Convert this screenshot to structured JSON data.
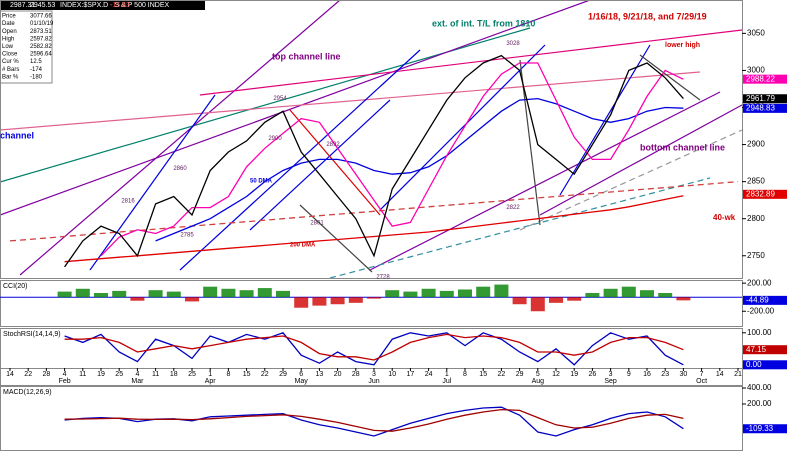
{
  "header": {
    "symbol": "INDEX:$SPX.D - S & P 500 INDEX",
    "quote": [
      ".47",
      "2987.31",
      "2945.53",
      "-15.83"
    ]
  },
  "info": [
    [
      "Price",
      "3077.66"
    ],
    [
      "Date",
      "01/10/19"
    ],
    [
      "Open",
      "2873.51"
    ],
    [
      "High",
      "2597.82"
    ],
    [
      "Low",
      "2582.82"
    ],
    [
      "Close",
      "2596.64"
    ],
    [
      "Cur %",
      "12.5"
    ],
    [
      "# Bars",
      "-174"
    ],
    [
      "Bar %",
      "-180"
    ]
  ],
  "x_axis": {
    "categories": [
      "14",
      "22",
      "28",
      "4",
      "11",
      "19",
      "25",
      "4",
      "11",
      "18",
      "25",
      "1",
      "8",
      "15",
      "22",
      "29",
      "6",
      "13",
      "20",
      "28",
      "3",
      "10",
      "17",
      "24",
      "1",
      "8",
      "15",
      "22",
      "29",
      "5",
      "12",
      "19",
      "26",
      "3",
      "9",
      "16",
      "23",
      "30",
      "7",
      "14",
      "21"
    ],
    "months": [
      null,
      null,
      null,
      "Feb",
      null,
      null,
      null,
      "Mar",
      null,
      null,
      null,
      "Apr",
      null,
      null,
      null,
      null,
      "May",
      null,
      null,
      null,
      "Jun",
      null,
      null,
      null,
      "Jul",
      null,
      null,
      null,
      null,
      "Aug",
      null,
      null,
      null,
      "Sep",
      null,
      null,
      null,
      null,
      "Oct",
      null,
      null
    ]
  },
  "annotations": [
    "top channel line",
    "channel",
    "bottom channel line",
    "ext. of int. T/L from 1810",
    "1/16/18, 9/21/18, and 7/29/19",
    "lower high",
    "40-wk",
    "50 DMA",
    "200 DMA"
  ],
  "pivots": [
    2954,
    2900,
    2892,
    2801,
    2728,
    2860,
    2816,
    2785,
    3028,
    2822
  ],
  "chart_data": [
    {
      "type": "line",
      "ylim": [
        2720,
        3095
      ],
      "yticks": [
        2750,
        2800,
        2850,
        2900,
        2950,
        3000,
        3050
      ],
      "series": [
        {
          "color": "#d04040",
          "dash": true,
          "values": [
            2770,
            2772,
            2774,
            2776,
            2778,
            2780,
            2782,
            2784,
            2786,
            2788,
            2790,
            2792,
            2794,
            2796,
            2798,
            2800,
            2802,
            2804,
            2806,
            2808,
            2810,
            2812,
            2814,
            2816,
            2818,
            2820,
            2822,
            2824,
            2826,
            2828,
            2830,
            2832,
            2834,
            2836,
            2838,
            2840,
            2842,
            2844,
            2846,
            2848,
            2850
          ]
        },
        {
          "color": "#e00000",
          "values": [
            null,
            null,
            null,
            2742,
            2744,
            2746,
            2748,
            2750,
            2752,
            2754,
            2756,
            2758,
            2760,
            2762,
            2764,
            2766,
            2768,
            2770,
            2772,
            2774,
            2776,
            2778,
            2780,
            2782,
            2785,
            2788,
            2791,
            2794,
            2797,
            2800,
            2803,
            2806,
            2809,
            2812,
            2816,
            2821,
            2826,
            2831,
            null,
            null,
            null
          ]
        },
        {
          "color": "#0000e0",
          "values": [
            null,
            null,
            null,
            null,
            null,
            null,
            null,
            null,
            2770,
            2780,
            2790,
            2800,
            2815,
            2830,
            2850,
            2865,
            2875,
            2880,
            2880,
            2875,
            2865,
            2860,
            2862,
            2870,
            2885,
            2905,
            2925,
            2945,
            2960,
            2962,
            2955,
            2945,
            2935,
            2930,
            2935,
            2945,
            2950,
            2949,
            null,
            null,
            null
          ]
        },
        {
          "color": "#ff00b0",
          "values": [
            null,
            null,
            null,
            null,
            null,
            2750,
            2775,
            2785,
            2780,
            2790,
            2815,
            2815,
            2830,
            2870,
            2895,
            2915,
            2935,
            2930,
            2895,
            2860,
            2825,
            2790,
            2795,
            2840,
            2885,
            2925,
            2965,
            2995,
            3010,
            3010,
            2960,
            2910,
            2880,
            2880,
            2920,
            2965,
            3000,
            2988,
            null,
            null,
            null
          ]
        },
        {
          "color": "#000000",
          "values": [
            null,
            null,
            null,
            2735,
            2770,
            2790,
            2780,
            2750,
            2820,
            2830,
            2805,
            2865,
            2890,
            2905,
            2930,
            2945,
            2890,
            2860,
            2830,
            2800,
            2750,
            2840,
            2880,
            2920,
            2960,
            2990,
            3010,
            3020,
            3000,
            2900,
            2880,
            2860,
            2900,
            2940,
            3000,
            3010,
            2990,
            2962,
            null,
            null,
            null
          ]
        }
      ],
      "tags": [
        {
          "value": 2988.22,
          "color": "#ff00b0"
        },
        {
          "value": 2961.79,
          "color": "#000000"
        },
        {
          "value": 2948.83,
          "color": "#0000e0"
        },
        {
          "value": 2832.89,
          "color": "#e00000"
        }
      ]
    },
    {
      "type": "bar",
      "title": "CCI(20)",
      "ylim": [
        -410,
        245
      ],
      "yticks": [
        {
          "value": 200,
          "label": "200.00"
        },
        {
          "value": -200,
          "label": "-200.00"
        }
      ],
      "series": [
        {
          "color": "#008000",
          "color_negative": "#d00000",
          "values": [
            null,
            null,
            null,
            80,
            120,
            60,
            90,
            -50,
            100,
            80,
            -60,
            150,
            120,
            100,
            130,
            90,
            -150,
            -120,
            -100,
            -80,
            -20,
            100,
            80,
            120,
            90,
            110,
            150,
            180,
            -100,
            -200,
            -80,
            -50,
            60,
            120,
            150,
            100,
            60,
            -45,
            null,
            null,
            null
          ]
        }
      ],
      "tags": [
        {
          "value": -44.89,
          "color": "#0000e0"
        }
      ]
    },
    {
      "type": "line",
      "title": "StochRSI(14,14,9)",
      "ylim": [
        -10,
        115
      ],
      "yticks": [
        {
          "value": 100,
          "label": "100.00"
        }
      ],
      "series": [
        {
          "color": "#0000c0",
          "values": [
            null,
            null,
            null,
            90,
            70,
            95,
            40,
            10,
            80,
            60,
            20,
            90,
            70,
            95,
            80,
            100,
            30,
            5,
            40,
            10,
            0,
            80,
            100,
            90,
            100,
            60,
            100,
            80,
            40,
            10,
            50,
            0,
            60,
            100,
            80,
            90,
            30,
            0,
            null,
            null,
            null
          ]
        },
        {
          "color": "#c00000",
          "values": [
            null,
            null,
            null,
            80,
            80,
            85,
            70,
            40,
            50,
            60,
            50,
            60,
            70,
            80,
            85,
            90,
            70,
            35,
            25,
            25,
            15,
            40,
            70,
            85,
            95,
            85,
            90,
            85,
            70,
            40,
            40,
            30,
            40,
            70,
            85,
            85,
            70,
            47.15,
            null,
            null,
            null
          ]
        }
      ],
      "tags": [
        {
          "value": 47.15,
          "color": "#c00000"
        },
        {
          "value": {
            "value": 0,
            "label": "0.00"
          },
          "color": "#0000e0"
        }
      ]
    },
    {
      "type": "line",
      "title": "MACD(12,26,9)",
      "ylim": [
        -375,
        425
      ],
      "yticks": [
        {
          "value": 400,
          "label": "400.00"
        },
        {
          "value": 200,
          "label": "200.00"
        }
      ],
      "series": [
        {
          "color": "#0000c0",
          "values": [
            null,
            null,
            null,
            0,
            20,
            30,
            20,
            -20,
            10,
            15,
            -10,
            40,
            50,
            60,
            70,
            80,
            0,
            -60,
            -100,
            -150,
            -200,
            -120,
            -40,
            20,
            80,
            120,
            150,
            160,
            60,
            -150,
            -200,
            -120,
            -60,
            20,
            80,
            100,
            40,
            -109.33,
            null,
            null,
            null
          ]
        },
        {
          "color": "#a00000",
          "values": [
            null,
            null,
            null,
            10,
            12,
            18,
            22,
            10,
            8,
            10,
            5,
            15,
            30,
            45,
            55,
            65,
            45,
            10,
            -30,
            -80,
            -130,
            -140,
            -100,
            -50,
            10,
            60,
            100,
            130,
            120,
            30,
            -60,
            -100,
            -90,
            -40,
            20,
            60,
            70,
            20,
            null,
            null,
            null
          ]
        }
      ],
      "tags": [
        {
          "value": -109.33,
          "color": "#0000e0"
        }
      ]
    }
  ]
}
